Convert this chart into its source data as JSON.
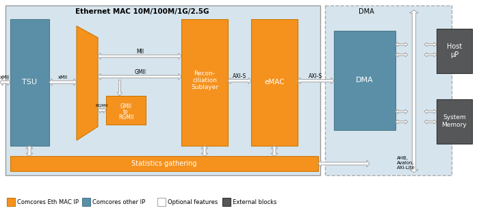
{
  "title": "Ethernet MAC 10M/100M/1G/2.5G",
  "colors": {
    "orange": "#F5921E",
    "teal": "#5B8FA8",
    "dark_gray": "#555759",
    "white": "#FFFFFF",
    "outer_bg": "#D6E4EE",
    "arrow_fill": "#FFFFFF",
    "arrow_edge": "#AAAAAA",
    "border": "#AAAAAA"
  },
  "legend": [
    {
      "label": "Comcores Eth MAC IP",
      "color": "#F5921E",
      "ec": "#cc7700"
    },
    {
      "label": "Comcores other IP",
      "color": "#5B8FA8",
      "ec": "#4a7a8a"
    },
    {
      "label": "Optional features",
      "color": "#FFFFFF",
      "ec": "#AAAAAA"
    },
    {
      "label": "External blocks",
      "color": "#555759",
      "ec": "#333333"
    }
  ]
}
